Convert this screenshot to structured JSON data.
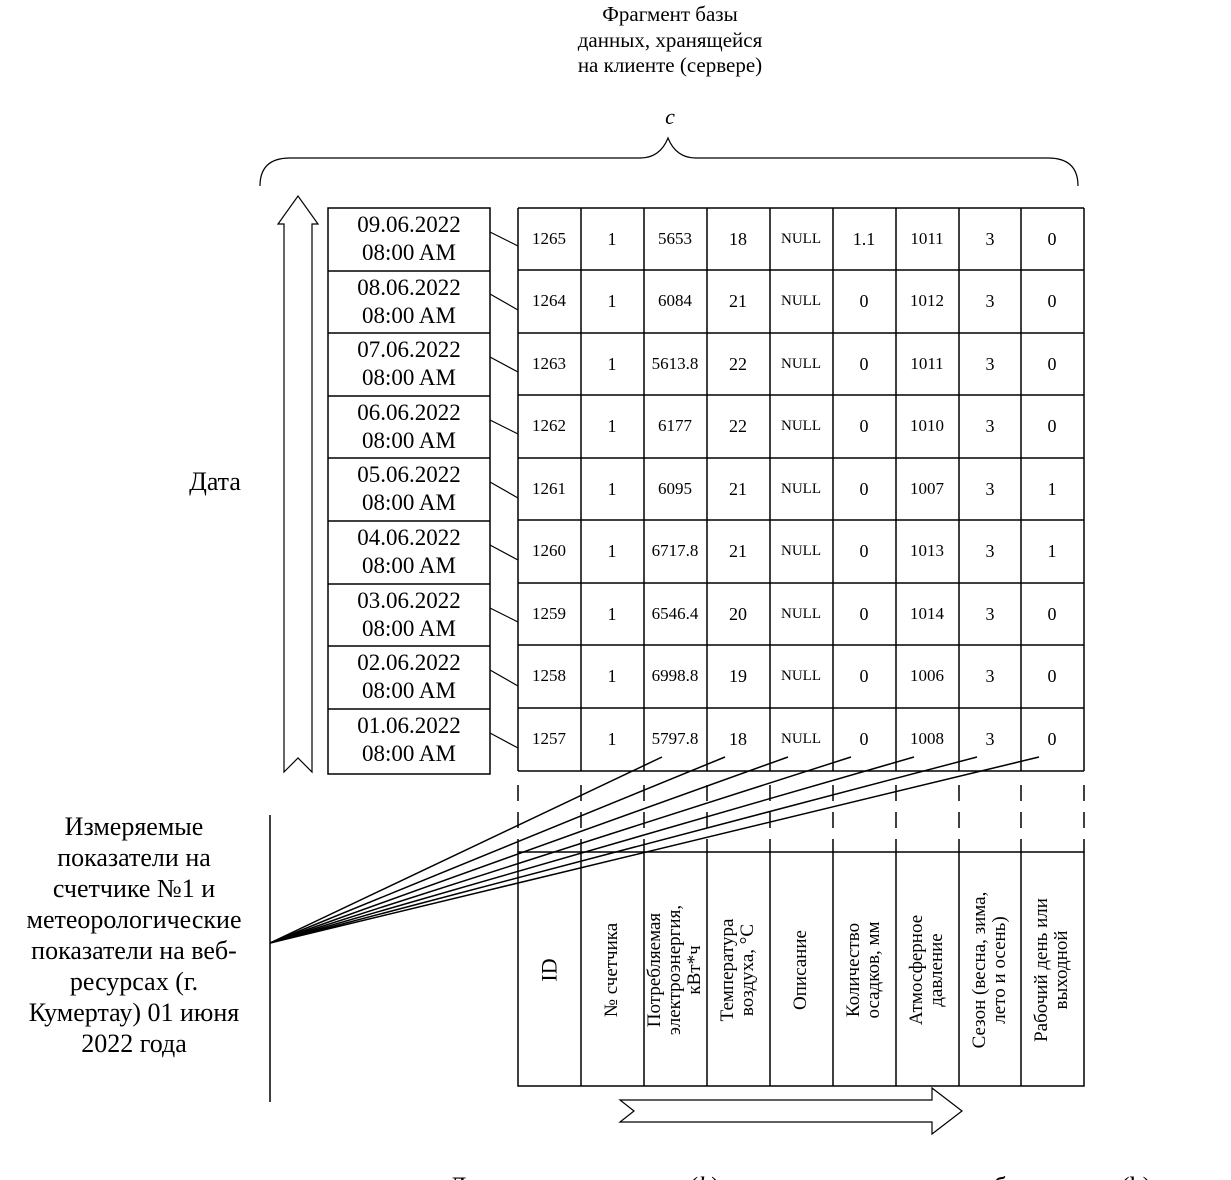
{
  "top_caption": "Фрагмент базы\nданных, хранящейся\nна клиенте (сервере)",
  "top_caption_var": "c",
  "date_axis_label": "Дата",
  "left_caption": "Измеряемые\nпоказатели на\nсчетчике №1 и\nметеорологические\nпоказатели на веб-\nресурсах (г.\nКумертау) 01 июня\n2022 года",
  "bottom_caption": "Данные со счетчиков (h) и метеорологических веб-ресурсов (h)",
  "rows": [
    {
      "date": "09.06.2022",
      "time": "08:00 AM",
      "cells": [
        "1265",
        "1",
        "5653",
        "18",
        "NULL",
        "1.1",
        "1011",
        "3",
        "0"
      ]
    },
    {
      "date": "08.06.2022",
      "time": "08:00 AM",
      "cells": [
        "1264",
        "1",
        "6084",
        "21",
        "NULL",
        "0",
        "1012",
        "3",
        "0"
      ]
    },
    {
      "date": "07.06.2022",
      "time": "08:00 AM",
      "cells": [
        "1263",
        "1",
        "5613.8",
        "22",
        "NULL",
        "0",
        "1011",
        "3",
        "0"
      ]
    },
    {
      "date": "06.06.2022",
      "time": "08:00 AM",
      "cells": [
        "1262",
        "1",
        "6177",
        "22",
        "NULL",
        "0",
        "1010",
        "3",
        "0"
      ]
    },
    {
      "date": "05.06.2022",
      "time": "08:00 AM",
      "cells": [
        "1261",
        "1",
        "6095",
        "21",
        "NULL",
        "0",
        "1007",
        "3",
        "1"
      ]
    },
    {
      "date": "04.06.2022",
      "time": "08:00 AM",
      "cells": [
        "1260",
        "1",
        "6717.8",
        "21",
        "NULL",
        "0",
        "1013",
        "3",
        "1"
      ]
    },
    {
      "date": "03.06.2022",
      "time": "08:00 AM",
      "cells": [
        "1259",
        "1",
        "6546.4",
        "20",
        "NULL",
        "0",
        "1014",
        "3",
        "0"
      ]
    },
    {
      "date": "02.06.2022",
      "time": "08:00 AM",
      "cells": [
        "1258",
        "1",
        "6998.8",
        "19",
        "NULL",
        "0",
        "1006",
        "3",
        "0"
      ]
    },
    {
      "date": "01.06.2022",
      "time": "08:00 AM",
      "cells": [
        "1257",
        "1",
        "5797.8",
        "18",
        "NULL",
        "0",
        "1008",
        "3",
        "0"
      ]
    }
  ],
  "headers": [
    "ID",
    "№ счетчика",
    "Потребляемая\nэлектроэнергия,\nкВт*ч",
    "Температура\nвоздуха, °С",
    "Описание",
    "Количество\nосадков, мм",
    "Атмосферное\nдавление",
    "Сезон (весна, зима,\nлето и осень)",
    "Рабочий день или\nвыходной"
  ]
}
